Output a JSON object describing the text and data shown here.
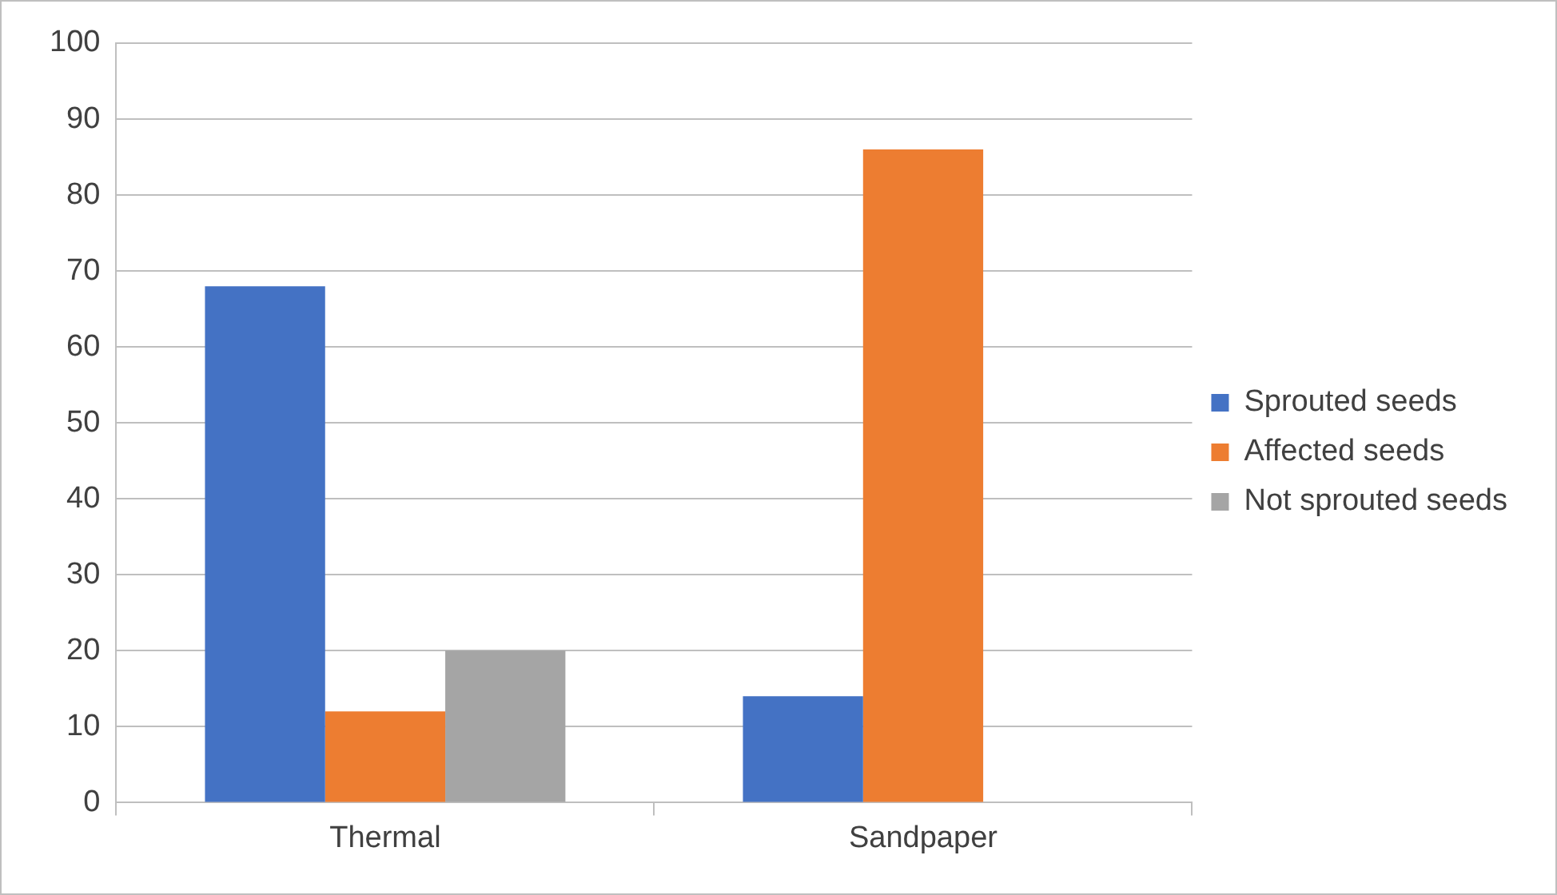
{
  "chart_data": {
    "type": "bar",
    "categories": [
      "Thermal",
      "Sandpaper"
    ],
    "series": [
      {
        "name": "Sprouted seeds",
        "color": "#4472c4",
        "values": [
          68,
          14
        ]
      },
      {
        "name": "Affected seeds",
        "color": "#ed7d31",
        "values": [
          12,
          86
        ]
      },
      {
        "name": "Not sprouted seeds",
        "color": "#a5a5a5",
        "values": [
          20,
          0
        ]
      }
    ],
    "ylim": [
      0,
      100
    ],
    "yticks": [
      0,
      10,
      20,
      30,
      40,
      50,
      60,
      70,
      80,
      90,
      100
    ],
    "grid": "y",
    "legend": "right"
  }
}
